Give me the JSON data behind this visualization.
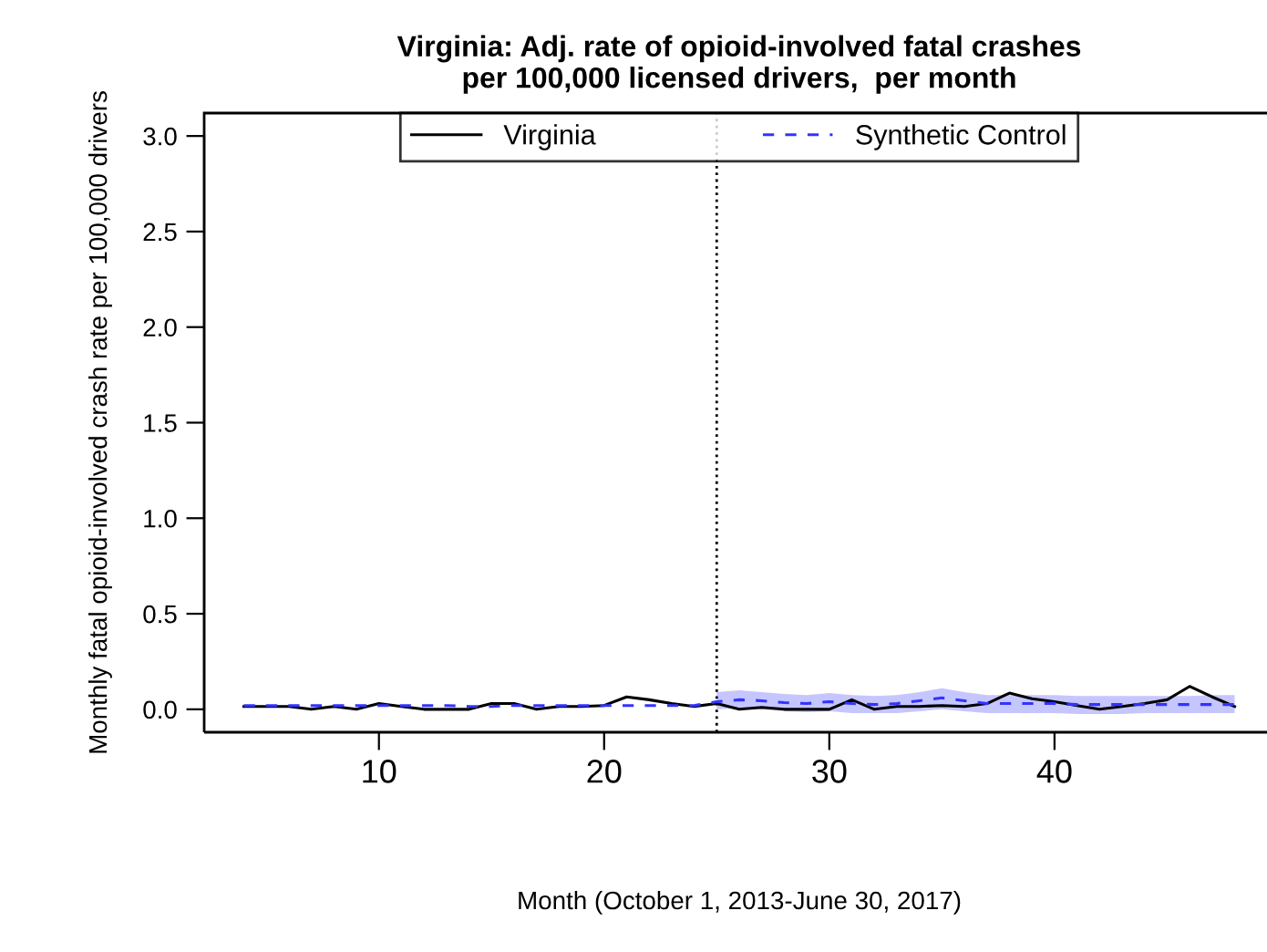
{
  "chart_data": {
    "type": "line",
    "title": "Virginia: Adj. rate of opioid-involved fatal crashes\nper 100,000 licensed drivers,  per month",
    "xlabel": "Month (October 1, 2013-June 30, 2017)",
    "ylabel": "Monthly fatal opioid-involved crash rate per 100,000 drivers",
    "x": [
      4,
      5,
      6,
      7,
      8,
      9,
      10,
      11,
      12,
      13,
      14,
      15,
      16,
      17,
      18,
      19,
      20,
      21,
      22,
      23,
      24,
      25,
      26,
      27,
      28,
      29,
      30,
      31,
      32,
      33,
      34,
      35,
      36,
      37,
      38,
      39,
      40,
      41,
      42,
      43,
      44,
      45,
      46,
      47,
      48
    ],
    "series": [
      {
        "name": "Virginia",
        "color": "#000000",
        "line_style": "solid",
        "values": [
          0.015,
          0.015,
          0.015,
          0,
          0.015,
          0,
          0.03,
          0.015,
          0,
          0,
          0,
          0.03,
          0.03,
          0,
          0.015,
          0.015,
          0.02,
          0.065,
          0.05,
          0.03,
          0.015,
          0.03,
          0,
          0.01,
          0,
          0,
          0,
          0.05,
          0,
          0.015,
          0.015,
          0.02,
          0.015,
          0.03,
          0.085,
          0.055,
          0.04,
          0.02,
          0,
          0.015,
          0.03,
          0.05,
          0.12,
          0.065,
          0.015
        ]
      },
      {
        "name": "Synthetic Control",
        "color": "#3333ff",
        "line_style": "dashed",
        "values": [
          0.02,
          0.02,
          0.02,
          0.02,
          0.02,
          0.02,
          0.02,
          0.02,
          0.02,
          0.02,
          0.015,
          0.015,
          0.02,
          0.02,
          0.02,
          0.02,
          0.02,
          0.02,
          0.02,
          0.02,
          0.02,
          0.04,
          0.05,
          0.045,
          0.035,
          0.03,
          0.04,
          0.03,
          0.025,
          0.03,
          0.045,
          0.06,
          0.045,
          0.03,
          0.03,
          0.03,
          0.03,
          0.025,
          0.025,
          0.025,
          0.025,
          0.025,
          0.025,
          0.025,
          0.025
        ],
        "lower": [
          null,
          null,
          null,
          null,
          null,
          null,
          null,
          null,
          null,
          null,
          null,
          null,
          null,
          null,
          null,
          null,
          null,
          null,
          null,
          null,
          null,
          0,
          0.005,
          0,
          -0.01,
          -0.015,
          -0.01,
          -0.02,
          -0.02,
          -0.02,
          -0.01,
          0,
          -0.01,
          -0.02,
          -0.02,
          -0.02,
          -0.02,
          -0.025,
          -0.025,
          -0.025,
          -0.02,
          -0.02,
          -0.02,
          -0.02,
          -0.02
        ],
        "upper": [
          null,
          null,
          null,
          null,
          null,
          null,
          null,
          null,
          null,
          null,
          null,
          null,
          null,
          null,
          null,
          null,
          null,
          null,
          null,
          null,
          null,
          0.09,
          0.1,
          0.09,
          0.08,
          0.075,
          0.085,
          0.075,
          0.07,
          0.075,
          0.09,
          0.11,
          0.09,
          0.075,
          0.075,
          0.075,
          0.075,
          0.07,
          0.07,
          0.07,
          0.07,
          0.07,
          0.07,
          0.075,
          0.075
        ]
      }
    ],
    "ref_lines": [
      {
        "axis": "x",
        "value": 25,
        "line_style": "dotted",
        "color": "#000000"
      }
    ],
    "xlim": [
      2.24,
      49.76
    ],
    "xticks": [
      10,
      20,
      30,
      40
    ],
    "ylim": [
      -0.12,
      3.12
    ],
    "yticks": [
      {
        "value": 0,
        "label": "0.0"
      },
      {
        "value": 0.5,
        "label": "0.5"
      },
      {
        "value": 1,
        "label": "1.0"
      },
      {
        "value": 1.5,
        "label": "1.5"
      },
      {
        "value": 2,
        "label": "2.0"
      },
      {
        "value": 2.5,
        "label": "2.5"
      },
      {
        "value": 3,
        "label": "3.0"
      }
    ],
    "legend": "top",
    "grid": false,
    "marker": "none"
  }
}
